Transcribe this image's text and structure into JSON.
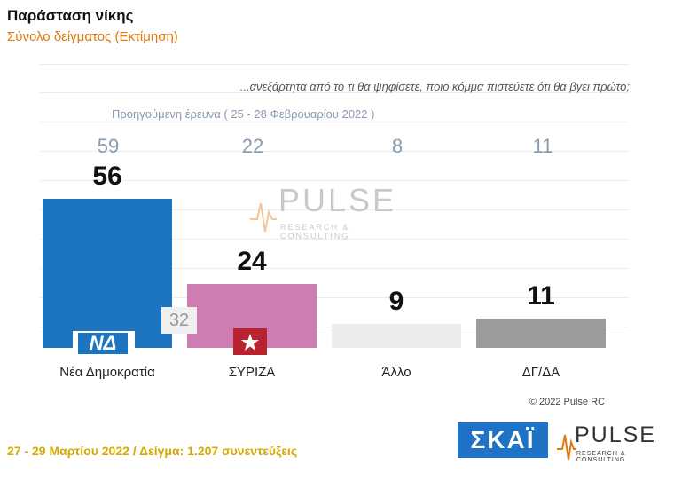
{
  "header": {
    "title": "Παράσταση νίκης",
    "subtitle": "Σύνολο δείγματος   (Εκτίμηση)"
  },
  "question": "...ανεξάρτητα από το τι θα ψηφίσετε, ποιο κόμμα πιστεύετε ότι θα βγει πρώτο;",
  "previous_survey": {
    "label": "Προηγούμενη έρευνα  ( 25 - 28 Φεβρουαρίου  2022 )",
    "values": [
      "59",
      "22",
      "8",
      "11"
    ]
  },
  "extra_label": "32",
  "chart_data": {
    "type": "bar",
    "categories": [
      "Νέα Δημοκρατία",
      "ΣΥΡΙΖΑ",
      "Άλλο",
      "ΔΓ/ΔΑ"
    ],
    "values": [
      56,
      24,
      9,
      11
    ],
    "value_labels": [
      "56",
      "24",
      "9",
      "11"
    ],
    "colors": [
      "#1d75c2",
      "#cf7cb2",
      "#ececec",
      "#9b9b9b"
    ],
    "ylim": [
      0,
      60
    ],
    "grid": true
  },
  "logos": {
    "nd": "ΝΔ",
    "watermark": "PULSE",
    "watermark_sub": "RESEARCH & CONSULTING",
    "skai": "ΣΚΑΪ",
    "pulse": "PULSE",
    "pulse_sub": "RESEARCH & CONSULTING"
  },
  "copyright": "© 2022 Pulse RC",
  "footer": "27 - 29  Μαρτίου  2022  /  Δείγμα:  1.207 συνεντεύξεις"
}
